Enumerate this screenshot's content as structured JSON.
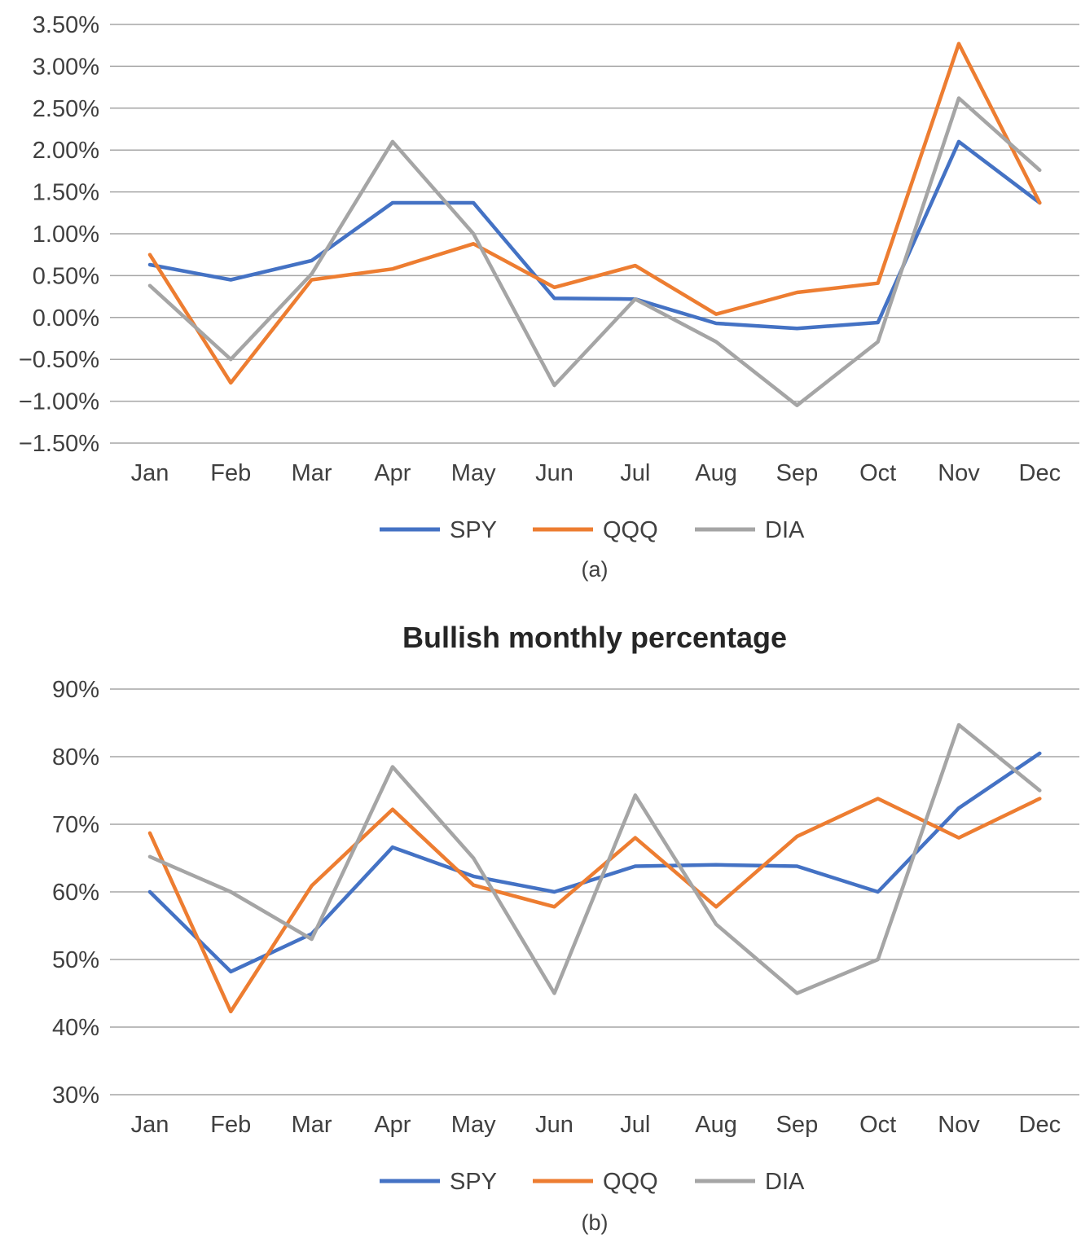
{
  "chart_data": [
    {
      "type": "line",
      "title": "",
      "caption": "(a)",
      "categories": [
        "Jan",
        "Feb",
        "Mar",
        "Apr",
        "May",
        "Jun",
        "Jul",
        "Aug",
        "Sep",
        "Oct",
        "Nov",
        "Dec"
      ],
      "y_ticks": [
        "3.50%",
        "3.00%",
        "2.50%",
        "2.00%",
        "1.50%",
        "1.00%",
        "0.50%",
        "0.00%",
        "−0.50%",
        "−1.00%",
        "−1.50%"
      ],
      "ylim": [
        -1.5,
        3.5
      ],
      "y_unit": "%",
      "grid": true,
      "legend_position": "bottom",
      "series": [
        {
          "name": "SPY",
          "color": "#4472c4",
          "values": [
            0.63,
            0.45,
            0.68,
            1.37,
            1.37,
            0.23,
            0.22,
            -0.07,
            -0.13,
            -0.06,
            2.1,
            1.37
          ]
        },
        {
          "name": "QQQ",
          "color": "#ed7d31",
          "values": [
            0.75,
            -0.78,
            0.45,
            0.58,
            0.88,
            0.36,
            0.62,
            0.04,
            0.3,
            0.41,
            3.27,
            1.37
          ]
        },
        {
          "name": "DIA",
          "color": "#a5a5a5",
          "values": [
            0.38,
            -0.5,
            0.52,
            2.1,
            1.0,
            -0.81,
            0.22,
            -0.29,
            -1.05,
            -0.29,
            2.62,
            1.76
          ]
        }
      ]
    },
    {
      "type": "line",
      "title": "Bullish monthly percentage",
      "caption": "(b)",
      "categories": [
        "Jan",
        "Feb",
        "Mar",
        "Apr",
        "May",
        "Jun",
        "Jul",
        "Aug",
        "Sep",
        "Oct",
        "Nov",
        "Dec"
      ],
      "y_ticks": [
        "90%",
        "80%",
        "70%",
        "60%",
        "50%",
        "40%",
        "30%"
      ],
      "ylim": [
        30,
        90
      ],
      "y_unit": "%",
      "grid": true,
      "legend_position": "bottom",
      "series": [
        {
          "name": "SPY",
          "color": "#4472c4",
          "values": [
            60.0,
            48.2,
            53.8,
            66.6,
            62.3,
            60.0,
            63.8,
            64.0,
            63.8,
            60.0,
            72.4,
            80.5
          ]
        },
        {
          "name": "QQQ",
          "color": "#ed7d31",
          "values": [
            68.7,
            42.3,
            60.9,
            72.2,
            61.0,
            57.8,
            68.0,
            57.8,
            68.2,
            73.8,
            68.0,
            73.8
          ]
        },
        {
          "name": "DIA",
          "color": "#a5a5a5",
          "values": [
            65.2,
            60.0,
            53.0,
            78.5,
            65.0,
            45.0,
            74.3,
            55.2,
            45.0,
            50.0,
            84.7,
            75.0
          ]
        }
      ]
    }
  ]
}
